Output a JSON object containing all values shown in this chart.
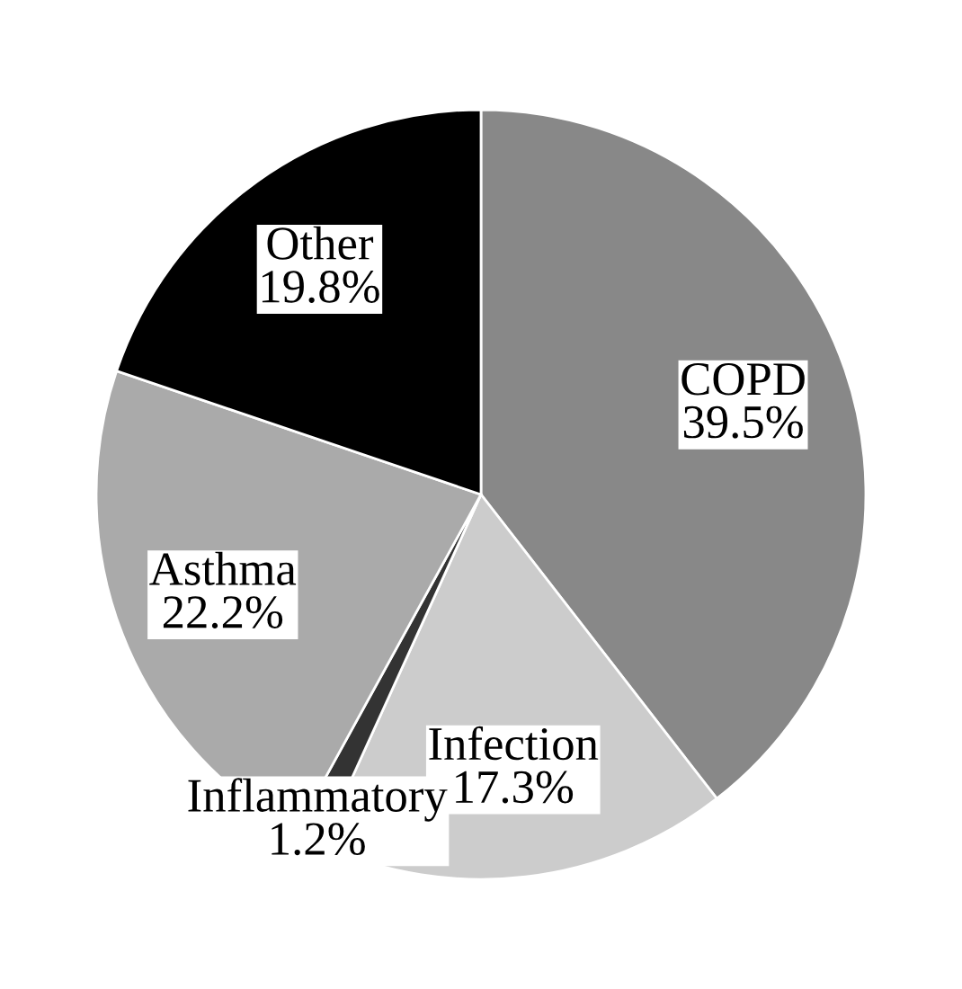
{
  "chart_data": {
    "type": "pie",
    "categories": [
      "COPD",
      "Infection",
      "Inflammatory",
      "Asthma",
      "Other"
    ],
    "values": [
      39.5,
      17.3,
      1.2,
      22.2,
      19.8
    ],
    "value_labels": [
      "39.5%",
      "17.3%",
      "1.2%",
      "22.2%",
      "19.8%"
    ],
    "colors": [
      "#888888",
      "#cccccc",
      "#333333",
      "#aaaaaa",
      "#000000"
    ]
  }
}
